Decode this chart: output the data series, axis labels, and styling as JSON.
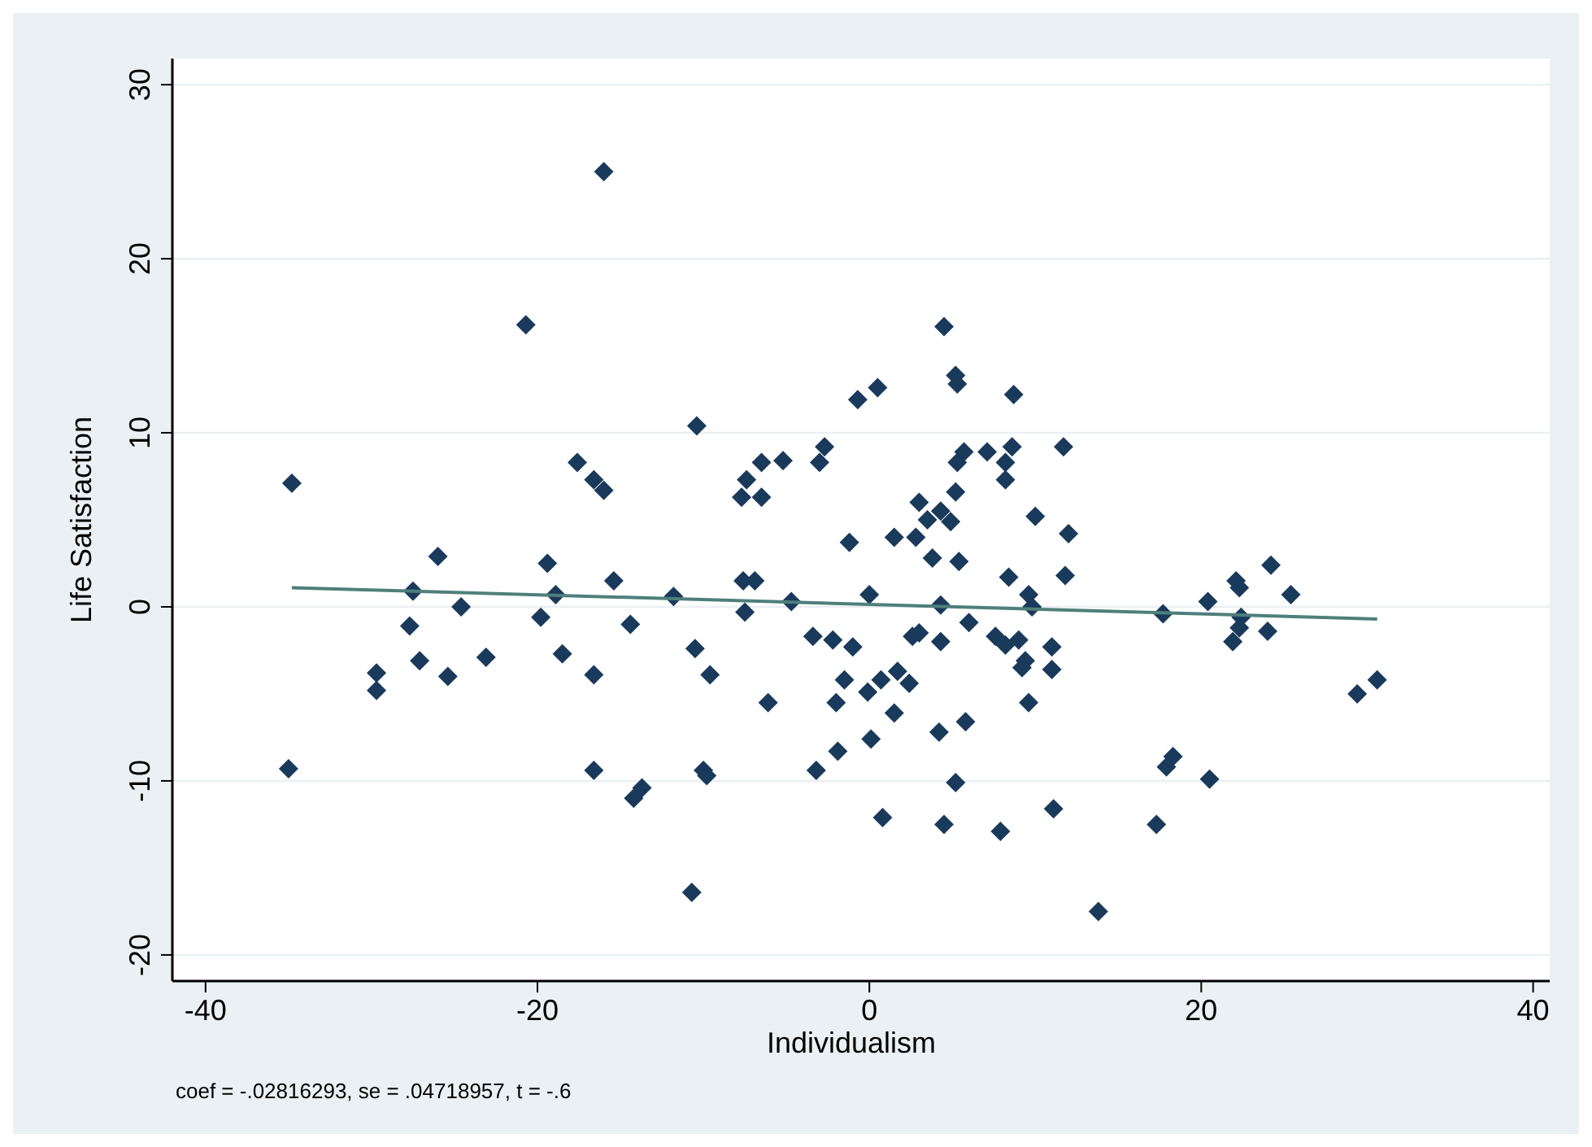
{
  "chart_data": {
    "type": "scatter",
    "xlabel": "Individualism",
    "ylabel": "Life Satisfaction",
    "annotations": [
      "coef = -.02816293, se = .04718957, t = -.6"
    ],
    "xlim": [
      -42,
      41
    ],
    "ylim": [
      -21.5,
      31.5
    ],
    "xticks": [
      -40,
      -20,
      0,
      20,
      40
    ],
    "yticks": [
      -20,
      -10,
      0,
      10,
      20,
      30
    ],
    "grid": "y",
    "series": [
      {
        "marker": "diamond",
        "color": "#1a3a5c",
        "x": [
          -16.0,
          -20.7,
          -34.8,
          -17.6,
          -16.6,
          -16.0,
          -26.0,
          -19.4,
          -15.4,
          -18.9,
          -27.5,
          -24.6,
          -14.4,
          -27.7,
          -19.8,
          -29.7,
          -29.7,
          -27.1,
          -25.4,
          -23.1,
          -18.5,
          -16.6,
          -35.0,
          -16.6,
          -14.2,
          -13.7,
          4.5,
          5.2,
          5.3,
          8.7,
          -0.7,
          0.5,
          -10.4,
          -2.7,
          -3.0,
          -6.5,
          -5.2,
          -7.4,
          -7.7,
          -6.5,
          5.7,
          5.3,
          7.1,
          8.6,
          8.2,
          8.2,
          11.7,
          5.2,
          3.0,
          3.5,
          4.3,
          4.9,
          2.8,
          -1.2,
          1.5,
          3.8,
          5.4,
          10.0,
          12.0,
          8.4,
          11.8,
          9.6,
          9.8,
          -11.8,
          -7.6,
          -6.9,
          -7.5,
          -4.7,
          0.0,
          4.3,
          6.0,
          -10.5,
          -9.6,
          -6.1,
          -3.4,
          -2.2,
          -1.0,
          -1.5,
          -2.0,
          -0.1,
          0.7,
          1.7,
          2.4,
          1.5,
          0.1,
          -1.9,
          -3.2,
          3.0,
          2.6,
          4.3,
          7.6,
          8.2,
          9.0,
          9.4,
          9.2,
          11.0,
          11.0,
          9.6,
          4.2,
          5.8,
          -10.0,
          -9.8,
          5.2,
          0.8,
          4.5,
          7.9,
          11.1,
          -10.7,
          13.8,
          24.2,
          22.1,
          22.3,
          25.4,
          20.4,
          17.7,
          22.4,
          22.3,
          21.9,
          24.0,
          29.4,
          30.6,
          18.3,
          17.9,
          20.5,
          17.3
        ],
        "values": [
          25.0,
          16.2,
          7.1,
          8.3,
          7.3,
          6.7,
          2.9,
          2.5,
          1.5,
          0.7,
          0.9,
          0.0,
          -1.0,
          -1.1,
          -0.6,
          -3.8,
          -4.8,
          -3.1,
          -4.0,
          -2.9,
          -2.7,
          -3.9,
          -9.3,
          -9.4,
          -11.0,
          -10.4,
          16.1,
          13.3,
          12.8,
          12.2,
          11.9,
          12.6,
          10.4,
          9.2,
          8.3,
          8.3,
          8.4,
          7.3,
          6.3,
          6.3,
          8.9,
          8.3,
          8.9,
          9.2,
          8.3,
          7.3,
          9.2,
          6.6,
          6.0,
          5.0,
          5.5,
          4.9,
          4.0,
          3.7,
          4.0,
          2.8,
          2.6,
          5.2,
          4.2,
          1.7,
          1.8,
          0.7,
          0.0,
          0.6,
          1.5,
          1.5,
          -0.3,
          0.3,
          0.7,
          0.1,
          -0.9,
          -2.4,
          -3.9,
          -5.5,
          -1.7,
          -1.9,
          -2.3,
          -4.2,
          -5.5,
          -4.9,
          -4.2,
          -3.7,
          -4.4,
          -6.1,
          -7.6,
          -8.3,
          -9.4,
          -1.5,
          -1.7,
          -2.0,
          -1.7,
          -2.2,
          -1.9,
          -3.1,
          -3.5,
          -2.3,
          -3.6,
          -5.5,
          -7.2,
          -6.6,
          -9.4,
          -9.7,
          -10.1,
          -12.1,
          -12.5,
          -12.9,
          -11.6,
          -16.4,
          -17.5,
          2.4,
          1.5,
          1.1,
          0.7,
          0.3,
          -0.4,
          -0.6,
          -1.2,
          -2.0,
          -1.4,
          -5.0,
          -4.2,
          -8.6,
          -9.2,
          -9.9,
          -12.5
        ]
      },
      {
        "type": "line",
        "marker": "none",
        "line_style": "solid",
        "color": "#4f7f7a",
        "x": [
          -34.8,
          30.6
        ],
        "values": [
          1.1,
          -0.7
        ]
      }
    ]
  }
}
